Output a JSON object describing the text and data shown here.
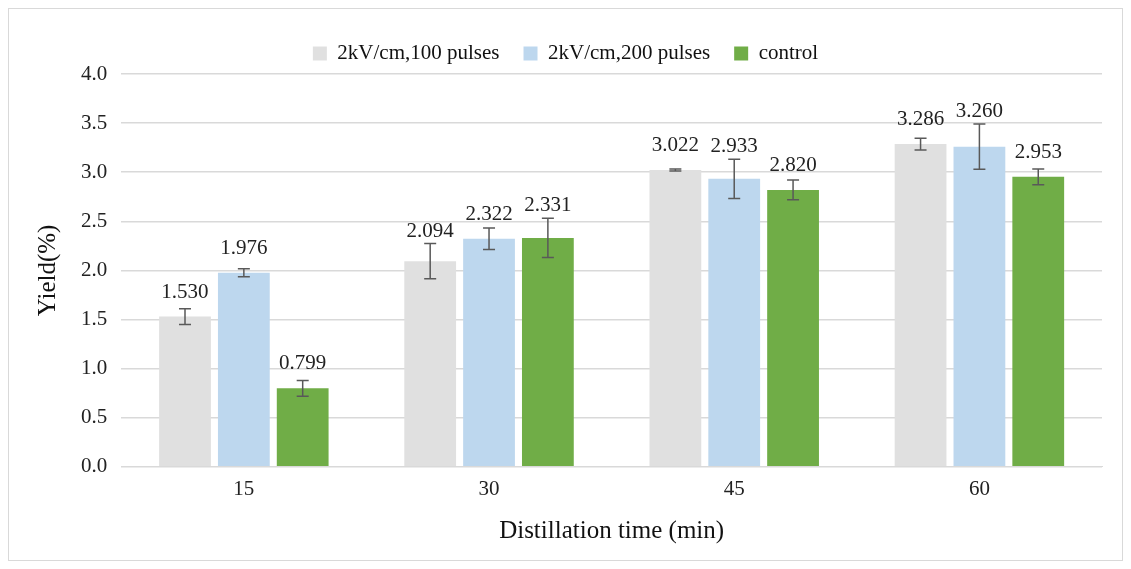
{
  "chart_data": {
    "type": "bar",
    "xlabel": "Distillation time (min)",
    "ylabel": "Yield(%)",
    "categories": [
      "15",
      "30",
      "45",
      "60"
    ],
    "series": [
      {
        "name": "2kV/cm,100 pulses",
        "color": "#e0e0e0",
        "values": [
          1.53,
          2.094,
          3.022,
          3.286
        ],
        "value_labels": [
          "1.530",
          "2.094",
          "3.022",
          "3.286"
        ],
        "errors": [
          0.08,
          0.18,
          0.01,
          0.06
        ]
      },
      {
        "name": "2kV/cm,200 pulses",
        "color": "#bdd7ee",
        "values": [
          1.976,
          2.322,
          2.933,
          3.26
        ],
        "value_labels": [
          "1.976",
          "2.322",
          "2.933",
          "3.260"
        ],
        "errors": [
          0.04,
          0.11,
          0.2,
          0.23
        ]
      },
      {
        "name": "control",
        "color": "#70ad47",
        "values": [
          0.799,
          2.331,
          2.82,
          2.953
        ],
        "value_labels": [
          "0.799",
          "2.331",
          "2.820",
          "2.953"
        ],
        "errors": [
          0.08,
          0.2,
          0.1,
          0.08
        ]
      }
    ],
    "ylim": [
      0,
      4
    ],
    "yticks": [
      {
        "value": 0,
        "label": "0.0"
      },
      {
        "value": 0.5,
        "label": "0.5"
      },
      {
        "value": 1,
        "label": "1.0"
      },
      {
        "value": 1.5,
        "label": "1.5"
      },
      {
        "value": 2,
        "label": "2.0"
      },
      {
        "value": 2.5,
        "label": "2.5"
      },
      {
        "value": 3,
        "label": "3.0"
      },
      {
        "value": 3.5,
        "label": "3.5"
      },
      {
        "value": 4,
        "label": "4.0"
      }
    ],
    "grid": "y",
    "legend": "top"
  }
}
